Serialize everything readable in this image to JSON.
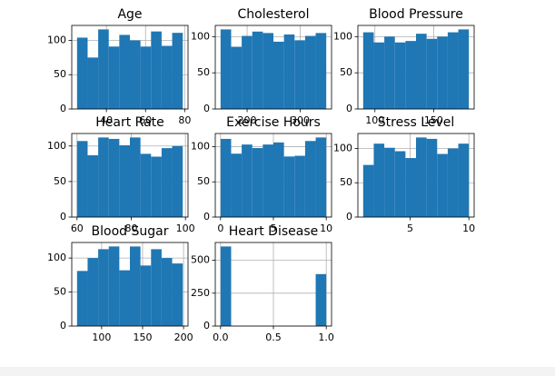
{
  "chart_data": [
    {
      "type": "histogram",
      "title": "Age",
      "color": "#1f77b4",
      "grid": true,
      "bins": [
        25,
        30.4,
        35.8,
        41.2,
        46.6,
        52,
        57.4,
        62.8,
        68.2,
        73.6,
        79
      ],
      "counts": [
        104,
        75,
        116,
        91,
        108,
        100,
        91,
        113,
        92,
        111
      ],
      "xlim": [
        22.3,
        81.7
      ],
      "xticks": [
        40,
        60,
        80
      ],
      "ylim": [
        0,
        121.8
      ],
      "yticks": [
        0,
        50,
        100
      ]
    },
    {
      "type": "histogram",
      "title": "Cholesterol",
      "color": "#1f77b4",
      "grid": true,
      "bins": [
        150,
        169.9,
        189.8,
        209.7,
        229.6,
        249.5,
        269.4,
        289.3,
        309.2,
        329.1,
        349
      ],
      "counts": [
        110,
        86,
        101,
        107,
        105,
        93,
        103,
        95,
        101,
        105
      ],
      "xlim": [
        140.05,
        358.95
      ],
      "xticks": [
        200,
        300
      ],
      "ylim": [
        0,
        115.5
      ],
      "yticks": [
        0,
        50,
        100
      ]
    },
    {
      "type": "histogram",
      "title": "Blood Pressure",
      "color": "#1f77b4",
      "grid": true,
      "bins": [
        90,
        99,
        108,
        117,
        126,
        135,
        144,
        153,
        162,
        171,
        180
      ],
      "counts": [
        106,
        92,
        100,
        92,
        94,
        104,
        97,
        100,
        106,
        110
      ],
      "xlim": [
        85.5,
        184.5
      ],
      "xticks": [
        100,
        150
      ],
      "ylim": [
        0,
        115.5
      ],
      "yticks": [
        0,
        50,
        100
      ]
    },
    {
      "type": "histogram",
      "title": "Heart Rate",
      "color": "#1f77b4",
      "grid": true,
      "bins": [
        60,
        63.9,
        67.8,
        71.7,
        75.6,
        79.5,
        83.4,
        87.3,
        91.2,
        95.1,
        99
      ],
      "counts": [
        107,
        87,
        112,
        110,
        101,
        112,
        89,
        85,
        97,
        100
      ],
      "xlim": [
        58.05,
        100.95
      ],
      "xticks": [
        60,
        80,
        100
      ],
      "ylim": [
        0,
        117.6
      ],
      "yticks": [
        0,
        50,
        100
      ]
    },
    {
      "type": "histogram",
      "title": "Exercise Hours",
      "color": "#1f77b4",
      "grid": true,
      "bins": [
        0,
        1,
        2,
        3,
        4,
        5,
        6,
        7,
        8,
        9,
        10
      ],
      "counts": [
        111,
        90,
        103,
        98,
        103,
        106,
        86,
        87,
        108,
        113
      ],
      "xlim": [
        -0.5,
        10.5
      ],
      "xticks": [
        0,
        5,
        10
      ],
      "ylim": [
        0,
        118.65
      ],
      "yticks": [
        0,
        50,
        100
      ]
    },
    {
      "type": "histogram",
      "title": "Stress Level",
      "color": "#1f77b4",
      "grid": true,
      "bins": [
        1,
        1.9,
        2.8,
        3.7,
        4.6,
        5.5,
        6.4,
        7.3,
        8.2,
        9.1,
        10
      ],
      "counts": [
        76,
        107,
        101,
        96,
        86,
        116,
        114,
        92,
        100,
        107
      ],
      "xlim": [
        0.55,
        10.45
      ],
      "xticks": [
        5,
        10
      ],
      "ylim": [
        0,
        121.8
      ],
      "yticks": [
        0,
        50,
        100
      ]
    },
    {
      "type": "histogram",
      "title": "Blood Sugar",
      "color": "#1f77b4",
      "grid": true,
      "bins": [
        70,
        82.9,
        95.8,
        108.7,
        121.6,
        134.5,
        147.4,
        160.3,
        173.2,
        186.1,
        199
      ],
      "counts": [
        81,
        100,
        113,
        117,
        82,
        117,
        89,
        113,
        100,
        92
      ],
      "xlim": [
        63.55,
        205.45
      ],
      "xticks": [
        100,
        150,
        200
      ],
      "ylim": [
        0,
        122.85
      ],
      "yticks": [
        0,
        50,
        100
      ]
    },
    {
      "type": "histogram",
      "title": "Heart Disease",
      "color": "#1f77b4",
      "grid": true,
      "bins": [
        0,
        0.1,
        0.2,
        0.3,
        0.4,
        0.5,
        0.6,
        0.7,
        0.8,
        0.9,
        1
      ],
      "counts": [
        605,
        0,
        0,
        0,
        0,
        0,
        0,
        0,
        0,
        395
      ],
      "xlim": [
        -0.05,
        1.05
      ],
      "xticks": [
        {
          "value": 0,
          "label": "0.0"
        },
        {
          "value": 0.5,
          "label": "0.5"
        },
        {
          "value": 1,
          "label": "1.0"
        }
      ],
      "ylim": [
        0,
        635.25
      ],
      "yticks": [
        0,
        250,
        500
      ]
    }
  ]
}
